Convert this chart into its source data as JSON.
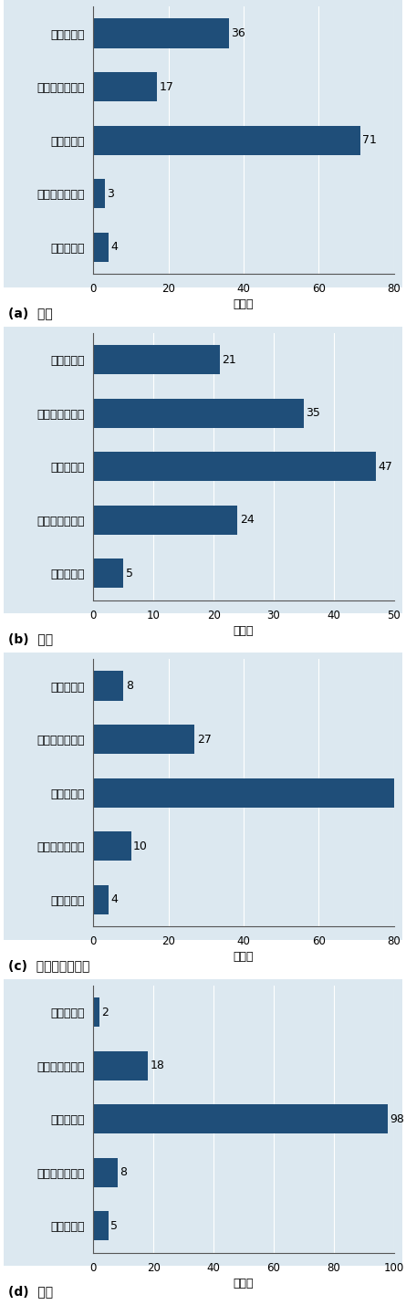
{
  "charts": [
    {
      "subtitle": "(a)  距離",
      "categories": [
        "悪くなった",
        "やや悪くなった",
        "変わらない",
        "やや良くなった",
        "良くなった"
      ],
      "values": [
        36,
        17,
        71,
        3,
        4
      ],
      "xlim": [
        0,
        80
      ],
      "xticks": [
        0,
        20,
        40,
        60,
        80
      ]
    },
    {
      "subtitle": "(b)  価格",
      "categories": [
        "悪くなった",
        "やや悪くなった",
        "変わらない",
        "やや良くなった",
        "良くなった"
      ],
      "values": [
        21,
        35,
        47,
        24,
        5
      ],
      "xlim": [
        0,
        50
      ],
      "xticks": [
        0,
        10,
        20,
        30,
        40,
        50
      ]
    },
    {
      "subtitle": "(c)  納品頻度・速度",
      "categories": [
        "悪くなった",
        "やや悪くなった",
        "変わらない",
        "やや良くなった",
        "良くなった"
      ],
      "values": [
        8,
        27,
        83,
        10,
        4
      ],
      "xlim": [
        0,
        80
      ],
      "xticks": [
        0,
        20,
        40,
        60,
        80
      ]
    },
    {
      "subtitle": "(d)  品質",
      "categories": [
        "悪くなった",
        "やや悪くなった",
        "変わらない",
        "やや良くなった",
        "良くなった"
      ],
      "values": [
        2,
        18,
        98,
        8,
        5
      ],
      "xlim": [
        0,
        100
      ],
      "xticks": [
        0,
        20,
        40,
        60,
        80,
        100
      ]
    }
  ],
  "bar_color": "#1f4e79",
  "bg_color": "#dce8f0",
  "outer_bg": "#f0f0f0",
  "xlabel": "企業数",
  "label_fontsize": 9,
  "value_fontsize": 9,
  "subtitle_fontsize": 10,
  "xlabel_fontsize": 9,
  "tick_fontsize": 8.5
}
